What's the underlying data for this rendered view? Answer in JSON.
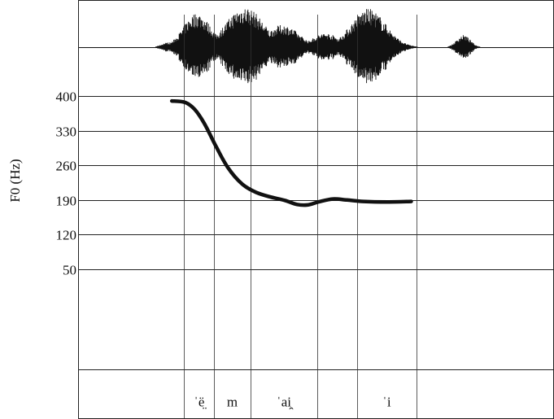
{
  "chart_data": {
    "type": "line",
    "title": "",
    "xlabel": "",
    "ylabel": "F0 (Hz)",
    "ylim": [
      -90,
      400
    ],
    "yticks": [
      400,
      330,
      260,
      190,
      120,
      50
    ],
    "ytick_labels": [
      "400",
      "330",
      "260",
      "190",
      "120",
      "50"
    ],
    "grid": true,
    "x_range": [
      0,
      1
    ],
    "series": [
      {
        "values": [
          {
            "x": 0.197,
            "y": 390
          },
          {
            "x": 0.225,
            "y": 387
          },
          {
            "x": 0.245,
            "y": 373
          },
          {
            "x": 0.265,
            "y": 345
          },
          {
            "x": 0.29,
            "y": 298
          },
          {
            "x": 0.315,
            "y": 255
          },
          {
            "x": 0.345,
            "y": 222
          },
          {
            "x": 0.375,
            "y": 205
          },
          {
            "x": 0.405,
            "y": 196
          },
          {
            "x": 0.435,
            "y": 189
          },
          {
            "x": 0.46,
            "y": 181
          },
          {
            "x": 0.482,
            "y": 180
          },
          {
            "x": 0.505,
            "y": 186
          },
          {
            "x": 0.535,
            "y": 192
          },
          {
            "x": 0.565,
            "y": 190
          },
          {
            "x": 0.6,
            "y": 187
          },
          {
            "x": 0.65,
            "y": 186
          },
          {
            "x": 0.7,
            "y": 187
          }
        ]
      }
    ],
    "segment_boundaries": [
      0.223,
      0.286,
      0.362,
      0.503,
      0.586,
      0.711
    ],
    "segments": [
      {
        "label": "ˈë̤",
        "start": 0.223,
        "end": 0.286
      },
      {
        "label": "m",
        "start": 0.286,
        "end": 0.362
      },
      {
        "label": "ˈai̯",
        "start": 0.362,
        "end": 0.503
      },
      {
        "label": "",
        "start": 0.503,
        "end": 0.586
      },
      {
        "label": "ˈi",
        "start": 0.586,
        "end": 0.711
      }
    ],
    "waveform_bursts": [
      {
        "center": 0.19,
        "width": 0.025,
        "amplitude": 0.12
      },
      {
        "center": 0.25,
        "width": 0.05,
        "amplitude": 0.85
      },
      {
        "center": 0.35,
        "width": 0.07,
        "amplitude": 1.0
      },
      {
        "center": 0.43,
        "width": 0.06,
        "amplitude": 0.55
      },
      {
        "center": 0.52,
        "width": 0.05,
        "amplitude": 0.35
      },
      {
        "center": 0.61,
        "width": 0.065,
        "amplitude": 0.95
      },
      {
        "center": 0.81,
        "width": 0.025,
        "amplitude": 0.3
      }
    ]
  }
}
